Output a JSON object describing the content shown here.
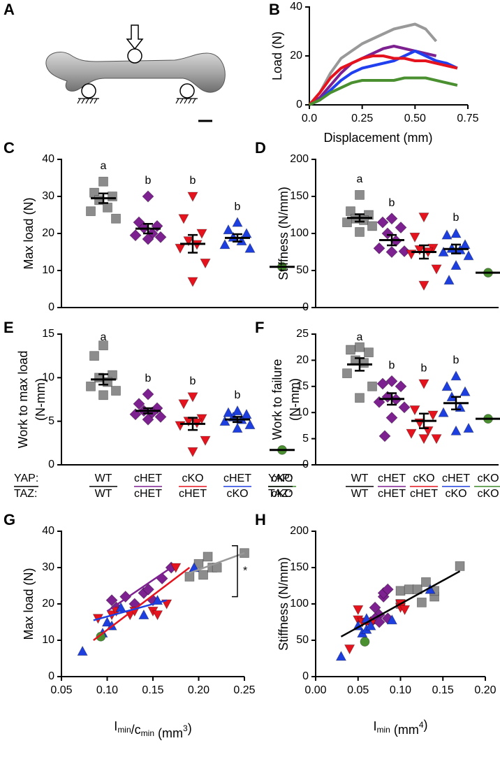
{
  "panel_a": {
    "label": "A"
  },
  "chart_data": [
    {
      "panel": "B",
      "type": "line",
      "xlabel": "Displacement (mm)",
      "ylabel": "Load (N)",
      "x": [
        0,
        0.05,
        0.1,
        0.15,
        0.2,
        0.25,
        0.3,
        0.35,
        0.4,
        0.45,
        0.5,
        0.55,
        0.6,
        0.65,
        0.7
      ],
      "series": [
        {
          "color": "#999999",
          "values": [
            0,
            5,
            13,
            19,
            22,
            25,
            27,
            29,
            31,
            32,
            33,
            31,
            26,
            null,
            null
          ]
        },
        {
          "color": "#7d2090",
          "values": [
            0,
            3,
            8,
            13,
            17,
            19,
            21,
            23,
            24,
            23,
            22,
            21,
            20,
            null,
            null
          ]
        },
        {
          "color": "#2040f0",
          "values": [
            0,
            2,
            6,
            10,
            13,
            15,
            16,
            17,
            18,
            20,
            22,
            20,
            18,
            17,
            15
          ]
        },
        {
          "color": "#e5131d",
          "values": [
            0,
            5,
            11,
            15,
            17,
            19,
            20,
            20,
            19,
            19,
            18,
            18,
            17,
            16,
            15
          ]
        },
        {
          "color": "#4a9030",
          "values": [
            0,
            2,
            5,
            7,
            9,
            10,
            10,
            10,
            10,
            11,
            11,
            11,
            10,
            9,
            8
          ]
        }
      ],
      "xlim": [
        0,
        0.75
      ],
      "xticks": [
        {
          "value": 0,
          "label": "0.0"
        },
        0.25,
        {
          "value": 0.5,
          "label": "0.50"
        },
        0.75
      ],
      "ylim": [
        0,
        40
      ],
      "yticks": [
        0,
        20,
        40
      ]
    },
    {
      "panel": "C",
      "type": "strip",
      "ylabel": "Max load (N)",
      "ylim": [
        0,
        40
      ],
      "yticks": [
        0,
        10,
        20,
        30,
        40
      ],
      "groups": [
        {
          "color": "#8c8c8c",
          "marker": "square",
          "values": [
            34,
            31,
            30,
            29,
            27,
            26,
            24
          ],
          "mean": 29.5,
          "sem": 1.3,
          "letter": "a"
        },
        {
          "color": "#7d2090",
          "marker": "diamond",
          "values": [
            30,
            23,
            22,
            21.5,
            20,
            19.5,
            19,
            18.5
          ],
          "mean": 21.3,
          "sem": 1.3,
          "letter": "b"
        },
        {
          "color": "#e5131d",
          "marker": "triangle-down",
          "values": [
            30,
            24,
            20,
            18,
            17,
            16,
            12,
            7
          ],
          "mean": 17.2,
          "sem": 2.4,
          "letter": "b"
        },
        {
          "color": "#1e3fe0",
          "marker": "triangle-up",
          "values": [
            23,
            21,
            20,
            19,
            18,
            17,
            16
          ],
          "mean": 18.8,
          "sem": 1.0,
          "letter": "b"
        },
        {
          "color": "#4a9030",
          "marker": "circle",
          "values": [
            11
          ],
          "mean": 11
        }
      ]
    },
    {
      "panel": "D",
      "type": "strip",
      "ylabel": "Stiffness (N/mm)",
      "ylim": [
        0,
        200
      ],
      "yticks": [
        0,
        50,
        100,
        150,
        200
      ],
      "groups": [
        {
          "color": "#8c8c8c",
          "marker": "square",
          "values": [
            152,
            130,
            125,
            120,
            118,
            115,
            110,
            102
          ],
          "mean": 121,
          "sem": 5,
          "letter": "a"
        },
        {
          "color": "#7d2090",
          "marker": "diamond",
          "values": [
            120,
            115,
            108,
            100,
            90,
            80,
            76,
            75
          ],
          "mean": 91,
          "sem": 7,
          "letter": "b"
        },
        {
          "color": "#e5131d",
          "marker": "triangle-down",
          "values": [
            122,
            95,
            80,
            78,
            75,
            72,
            52,
            30
          ],
          "mean": 75,
          "sem": 9
        },
        {
          "color": "#1e3fe0",
          "marker": "triangle-up",
          "values": [
            100,
            98,
            85,
            80,
            78,
            75,
            70,
            57,
            37
          ],
          "mean": 79,
          "sem": 6,
          "letter": "b"
        },
        {
          "color": "#4a9030",
          "marker": "circle",
          "values": [
            47
          ],
          "mean": 47
        }
      ]
    },
    {
      "panel": "E",
      "type": "strip",
      "ylabel": [
        "Work to max load",
        "(N-mm)"
      ],
      "ylim": [
        0,
        15
      ],
      "yticks": [
        0,
        5,
        10,
        15
      ],
      "groups": [
        {
          "color": "#8c8c8c",
          "marker": "square",
          "values": [
            13.7,
            12.5,
            10.3,
            10,
            9.5,
            9,
            8.5,
            8
          ],
          "mean": 9.8,
          "sem": 0.6,
          "letter": "a"
        },
        {
          "color": "#7d2090",
          "marker": "diamond",
          "values": [
            8.1,
            7,
            6.5,
            6.2,
            6,
            5.8,
            5.5,
            5.2
          ],
          "mean": 6.2,
          "sem": 0.3,
          "letter": "b"
        },
        {
          "color": "#e5131d",
          "marker": "triangle-down",
          "values": [
            7.8,
            7,
            5.3,
            5,
            4.8,
            4.5,
            2.8,
            1.5
          ],
          "mean": 4.7,
          "sem": 0.7,
          "letter": "b"
        },
        {
          "color": "#1e3fe0",
          "marker": "triangle-up",
          "values": [
            6.2,
            6,
            5.8,
            5.5,
            5.2,
            5,
            4.6,
            4.2
          ],
          "mean": 5.2,
          "sem": 0.3,
          "letter": "b"
        },
        {
          "color": "#4a9030",
          "marker": "circle",
          "values": [
            1.7
          ],
          "mean": 1.7
        }
      ],
      "genotype": {
        "row_labels": [
          "YAP:",
          "TAZ:"
        ],
        "yap": [
          "WT",
          "cHET",
          "cKO",
          "cHET",
          "cKO"
        ],
        "taz": [
          "WT",
          "cHET",
          "cHET",
          "cKO",
          "cKO"
        ],
        "label_colors": [
          "#000000",
          "#7d2090",
          "#e5131d",
          "#1e3fe0",
          "#3f8a2a"
        ]
      }
    },
    {
      "panel": "F",
      "type": "strip",
      "ylabel": [
        "Work to failure",
        "(N-mm)"
      ],
      "ylim": [
        0,
        25
      ],
      "yticks": [
        0,
        5,
        10,
        15,
        20,
        25
      ],
      "groups": [
        {
          "color": "#8c8c8c",
          "marker": "square",
          "values": [
            22.5,
            22,
            21.5,
            20,
            19.5,
            17.5,
            15,
            12.8
          ],
          "mean": 19.2,
          "sem": 1.2,
          "letter": "a"
        },
        {
          "color": "#7d2090",
          "marker": "diamond",
          "values": [
            16,
            15.5,
            15,
            13,
            12.5,
            12,
            11,
            9,
            5.5
          ],
          "mean": 12.6,
          "sem": 1.1,
          "letter": "b"
        },
        {
          "color": "#e5131d",
          "marker": "triangle-down",
          "values": [
            15.5,
            10.5,
            9.5,
            8,
            6.5,
            6,
            5,
            5
          ],
          "mean": 8.4,
          "sem": 1.4,
          "letter": "b"
        },
        {
          "color": "#1e3fe0",
          "marker": "triangle-up",
          "values": [
            17,
            15,
            14,
            13,
            11,
            10,
            7,
            6.5
          ],
          "mean": 11.8,
          "sem": 1.2,
          "letter": "b"
        },
        {
          "color": "#4a9030",
          "marker": "circle",
          "values": [
            8.8
          ],
          "mean": 8.8
        }
      ],
      "genotype": {
        "row_labels": [
          "YAP:",
          "TAZ:"
        ],
        "yap": [
          "WT",
          "cHET",
          "cKO",
          "cHET",
          "cKO"
        ],
        "taz": [
          "WT",
          "cHET",
          "cHET",
          "cKO",
          "cKO"
        ],
        "label_colors": [
          "#000000",
          "#7d2090",
          "#e5131d",
          "#1e3fe0",
          "#3f8a2a"
        ]
      }
    },
    {
      "panel": "G",
      "type": "scatter",
      "ylabel": "Max load (N)",
      "xlabel_parts": [
        {
          "text": "I"
        },
        {
          "text": "min",
          "shift": "sub"
        },
        {
          "text": "/c"
        },
        {
          "text": "min",
          "shift": "sub"
        },
        {
          "text": " (mm"
        },
        {
          "text": "3",
          "shift": "super"
        },
        {
          "text": ")"
        }
      ],
      "xlim": [
        0.05,
        0.25
      ],
      "xticks": [
        0.05,
        {
          "value": 0.1,
          "label": "0.10"
        },
        0.15,
        {
          "value": 0.2,
          "label": "0.20"
        },
        0.25
      ],
      "ylim": [
        0,
        40
      ],
      "yticks": [
        0,
        10,
        20,
        30,
        40
      ],
      "series": [
        {
          "color": "#8c8c8c",
          "marker": "square",
          "x": [
            0.19,
            0.2,
            0.205,
            0.21,
            0.215,
            0.22,
            0.25
          ],
          "y": [
            27.5,
            31,
            28,
            33,
            30,
            30,
            34
          ]
        },
        {
          "color": "#7d2090",
          "marker": "diamond",
          "x": [
            0.105,
            0.11,
            0.12,
            0.13,
            0.14,
            0.145,
            0.15,
            0.16,
            0.17
          ],
          "y": [
            21,
            19,
            22,
            20,
            23,
            24,
            21,
            27,
            30
          ]
        },
        {
          "color": "#e5131d",
          "marker": "triangle-down",
          "x": [
            0.09,
            0.105,
            0.11,
            0.125,
            0.13,
            0.15,
            0.155,
            0.165,
            0.175
          ],
          "y": [
            16,
            17,
            18,
            17,
            18,
            18,
            17,
            20,
            30
          ]
        },
        {
          "color": "#1e3fe0",
          "marker": "triangle-up",
          "x": [
            0.073,
            0.095,
            0.1,
            0.105,
            0.115,
            0.14,
            0.155,
            0.195
          ],
          "y": [
            7,
            12,
            15,
            14,
            19,
            17,
            21,
            30
          ]
        },
        {
          "color": "#4a9030",
          "marker": "circle",
          "x": [
            0.093
          ],
          "y": [
            11
          ]
        }
      ],
      "fits": [
        {
          "color": "#999999",
          "x": [
            0.19,
            0.25
          ],
          "y": [
            28.5,
            34
          ]
        },
        {
          "color": "#7d2090",
          "x": [
            0.1,
            0.17
          ],
          "y": [
            18,
            30
          ]
        },
        {
          "color": "#e5131d",
          "x": [
            0.085,
            0.19
          ],
          "y": [
            10,
            30
          ]
        },
        {
          "color": "#1e3fe0",
          "x": [
            0.085,
            0.165
          ],
          "y": [
            15.5,
            21
          ]
        }
      ],
      "bracket": {
        "y": [
          36,
          22
        ],
        "label": "*"
      }
    },
    {
      "panel": "H",
      "type": "scatter",
      "ylabel": "Stiffness (N/mm)",
      "xlabel_parts": [
        {
          "text": "I"
        },
        {
          "text": "min",
          "shift": "sub"
        },
        {
          "text": " (mm"
        },
        {
          "text": "4",
          "shift": "super"
        },
        {
          "text": ")"
        }
      ],
      "xlim": [
        0,
        0.2
      ],
      "xticks": [
        {
          "value": 0,
          "label": "0.00"
        },
        0.05,
        {
          "value": 0.1,
          "label": "0.10"
        },
        0.15,
        {
          "value": 0.2,
          "label": "0.20"
        }
      ],
      "ylim": [
        0,
        200
      ],
      "yticks": [
        0,
        50,
        100,
        150,
        200
      ],
      "series": [
        {
          "color": "#8c8c8c",
          "marker": "square",
          "x": [
            0.1,
            0.11,
            0.12,
            0.125,
            0.13,
            0.14,
            0.14,
            0.17,
            0.1
          ],
          "y": [
            118,
            120,
            120,
            102,
            130,
            110,
            118,
            152,
            100
          ]
        },
        {
          "color": "#7d2090",
          "marker": "diamond",
          "x": [
            0.07,
            0.075,
            0.08,
            0.08,
            0.085,
            0.065,
            0.07,
            0.075,
            0.085
          ],
          "y": [
            95,
            85,
            110,
            115,
            120,
            75,
            80,
            75,
            80
          ]
        },
        {
          "color": "#e5131d",
          "marker": "triangle-down",
          "x": [
            0.04,
            0.05,
            0.055,
            0.06,
            0.065,
            0.1,
            0.1,
            0.105,
            0.05
          ],
          "y": [
            38,
            78,
            75,
            75,
            72,
            100,
            95,
            92,
            92
          ]
        },
        {
          "color": "#1e3fe0",
          "marker": "triangle-up",
          "x": [
            0.03,
            0.05,
            0.055,
            0.06,
            0.06,
            0.065,
            0.135,
            0.09
          ],
          "y": [
            28,
            70,
            60,
            80,
            65,
            70,
            120,
            78
          ]
        },
        {
          "color": "#4a9030",
          "marker": "circle",
          "x": [
            0.058
          ],
          "y": [
            48
          ]
        }
      ],
      "fits": [
        {
          "color": "#000000",
          "x": [
            0.03,
            0.17
          ],
          "y": [
            55,
            145
          ]
        }
      ]
    }
  ]
}
